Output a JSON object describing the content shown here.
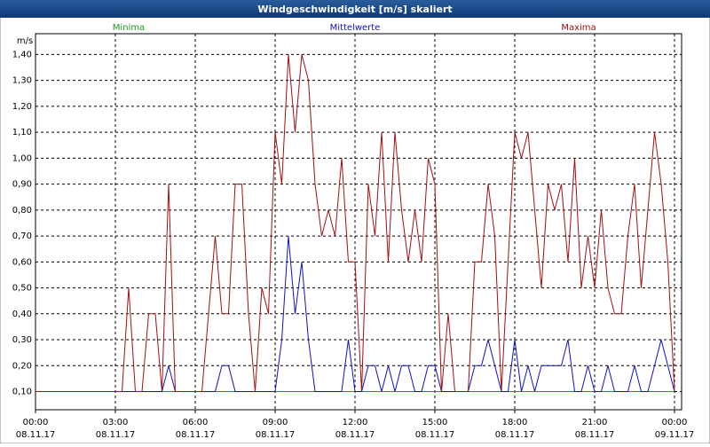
{
  "chart_data": {
    "type": "line",
    "title": "Windgeschwindigkeit [m/s] skaliert",
    "y_label": "m/s",
    "x": [
      0,
      0.25,
      0.5,
      0.75,
      1,
      1.25,
      1.5,
      1.75,
      2,
      2.25,
      2.5,
      2.75,
      3,
      3.25,
      3.5,
      3.75,
      4,
      4.25,
      4.5,
      4.75,
      5,
      5.25,
      5.5,
      5.75,
      6,
      6.25,
      6.5,
      6.75,
      7,
      7.25,
      7.5,
      7.75,
      8,
      8.25,
      8.5,
      8.75,
      9,
      9.25,
      9.5,
      9.75,
      10,
      10.25,
      10.5,
      10.75,
      11,
      11.25,
      11.5,
      11.75,
      12,
      12.25,
      12.5,
      12.75,
      13,
      13.25,
      13.5,
      13.75,
      14,
      14.25,
      14.5,
      14.75,
      15,
      15.25,
      15.5,
      15.75,
      16,
      16.25,
      16.5,
      16.75,
      17,
      17.25,
      17.5,
      17.75,
      18,
      18.25,
      18.5,
      18.75,
      19,
      19.25,
      19.5,
      19.75,
      20,
      20.25,
      20.5,
      20.75,
      21,
      21.25,
      21.5,
      21.75,
      22,
      22.25,
      22.5,
      22.75,
      23,
      23.25,
      23.5,
      23.75,
      24
    ],
    "series": [
      {
        "name": "Minima",
        "color": "#1a9a1a",
        "values": [
          0.1,
          0.1,
          0.1,
          0.1,
          0.1,
          0.1,
          0.1,
          0.1,
          0.1,
          0.1,
          0.1,
          0.1,
          0.1,
          0.1,
          0.1,
          0.1,
          0.1,
          0.1,
          0.1,
          0.1,
          0.1,
          0.1,
          0.1,
          0.1,
          0.1,
          0.1,
          0.1,
          0.1,
          0.1,
          0.1,
          0.1,
          0.1,
          0.1,
          0.1,
          0.1,
          0.1,
          0.1,
          0.1,
          0.1,
          0.1,
          0.1,
          0.1,
          0.1,
          0.1,
          0.1,
          0.1,
          0.1,
          0.1,
          0.1,
          0.1,
          0.1,
          0.1,
          0.1,
          0.1,
          0.1,
          0.1,
          0.1,
          0.1,
          0.1,
          0.1,
          0.1,
          0.1,
          0.1,
          0.1,
          0.1,
          0.1,
          0.1,
          0.1,
          0.1,
          0.1,
          0.1,
          0.1,
          0.1,
          0.1,
          0.1,
          0.1,
          0.1,
          0.1,
          0.1,
          0.1,
          0.1,
          0.1,
          0.1,
          0.1,
          0.1,
          0.1,
          0.1,
          0.1,
          0.1,
          0.1,
          0.1,
          0.1,
          0.1,
          0.1,
          0.1,
          0.1,
          0.1
        ]
      },
      {
        "name": "Mittelwerte",
        "color": "#1010c0",
        "values": [
          0.1,
          0.1,
          0.1,
          0.1,
          0.1,
          0.1,
          0.1,
          0.1,
          0.1,
          0.1,
          0.1,
          0.1,
          0.1,
          0.1,
          0.1,
          0.1,
          0.1,
          0.1,
          0.1,
          0.1,
          0.2,
          0.1,
          0.1,
          0.1,
          0.1,
          0.1,
          0.1,
          0.1,
          0.2,
          0.2,
          0.1,
          0.1,
          0.1,
          0.1,
          0.1,
          0.1,
          0.1,
          0.3,
          0.7,
          0.4,
          0.6,
          0.3,
          0.1,
          0.1,
          0.1,
          0.1,
          0.1,
          0.3,
          0.1,
          0.1,
          0.2,
          0.2,
          0.1,
          0.2,
          0.1,
          0.2,
          0.2,
          0.1,
          0.1,
          0.2,
          0.2,
          0.1,
          0.1,
          0.1,
          0.1,
          0.1,
          0.2,
          0.2,
          0.3,
          0.2,
          0.1,
          0.1,
          0.3,
          0.1,
          0.2,
          0.1,
          0.2,
          0.2,
          0.2,
          0.2,
          0.3,
          0.1,
          0.1,
          0.2,
          0.1,
          0.1,
          0.2,
          0.1,
          0.1,
          0.1,
          0.2,
          0.1,
          0.1,
          0.2,
          0.3,
          0.2,
          0.1
        ]
      },
      {
        "name": "Maxima",
        "color": "#a01010",
        "values": [
          0.1,
          0.1,
          0.1,
          0.1,
          0.1,
          0.1,
          0.1,
          0.1,
          0.1,
          0.1,
          0.1,
          0.1,
          0.1,
          0.1,
          0.5,
          0.1,
          0.1,
          0.4,
          0.4,
          0.1,
          0.9,
          0.1,
          0.1,
          0.1,
          0.1,
          0.1,
          0.4,
          0.7,
          0.4,
          0.4,
          0.9,
          0.9,
          0.4,
          0.1,
          0.5,
          0.4,
          1.1,
          0.9,
          1.4,
          1.1,
          1.4,
          1.3,
          0.9,
          0.7,
          0.8,
          0.7,
          1.0,
          0.6,
          0.6,
          0.1,
          0.9,
          0.7,
          1.1,
          0.6,
          1.1,
          0.8,
          0.6,
          0.8,
          0.6,
          1.0,
          0.9,
          0.1,
          0.4,
          0.1,
          0.1,
          0.1,
          0.6,
          0.6,
          0.9,
          0.7,
          0.1,
          0.6,
          1.1,
          1.0,
          1.1,
          0.8,
          0.5,
          0.9,
          0.8,
          0.9,
          0.6,
          1.0,
          0.5,
          0.7,
          0.5,
          0.8,
          0.5,
          0.4,
          0.4,
          0.7,
          0.9,
          0.5,
          0.8,
          1.1,
          0.9,
          0.6,
          0.1
        ]
      }
    ],
    "xlim": [
      0,
      24
    ],
    "xticks": [
      {
        "value": 0,
        "label": "00:00",
        "date": "08.11.17"
      },
      {
        "value": 3,
        "label": "03:00",
        "date": "08.11.17"
      },
      {
        "value": 6,
        "label": "06:00",
        "date": "08.11.17"
      },
      {
        "value": 9,
        "label": "09:00",
        "date": "08.11.17"
      },
      {
        "value": 12,
        "label": "12:00",
        "date": "08.11.17"
      },
      {
        "value": 15,
        "label": "15:00",
        "date": "08.11.17"
      },
      {
        "value": 18,
        "label": "18:00",
        "date": "08.11.17"
      },
      {
        "value": 21,
        "label": "21:00",
        "date": "08.11.17"
      },
      {
        "value": 24,
        "label": "00:00",
        "date": "09.11.17"
      }
    ],
    "ylim": [
      0.03,
      1.48
    ],
    "yticks": [
      {
        "value": 0.1,
        "label": "0,10"
      },
      {
        "value": 0.2,
        "label": "0,20"
      },
      {
        "value": 0.3,
        "label": "0,30"
      },
      {
        "value": 0.4,
        "label": "0,40"
      },
      {
        "value": 0.5,
        "label": "0,50"
      },
      {
        "value": 0.6,
        "label": "0,60"
      },
      {
        "value": 0.7,
        "label": "0,70"
      },
      {
        "value": 0.8,
        "label": "0,80"
      },
      {
        "value": 0.9,
        "label": "0,90"
      },
      {
        "value": 1.0,
        "label": "1,00"
      },
      {
        "value": 1.1,
        "label": "1,10"
      },
      {
        "value": 1.2,
        "label": "1,20"
      },
      {
        "value": 1.3,
        "label": "1,30"
      },
      {
        "value": 1.4,
        "label": "1,40"
      }
    ],
    "grid": true
  }
}
